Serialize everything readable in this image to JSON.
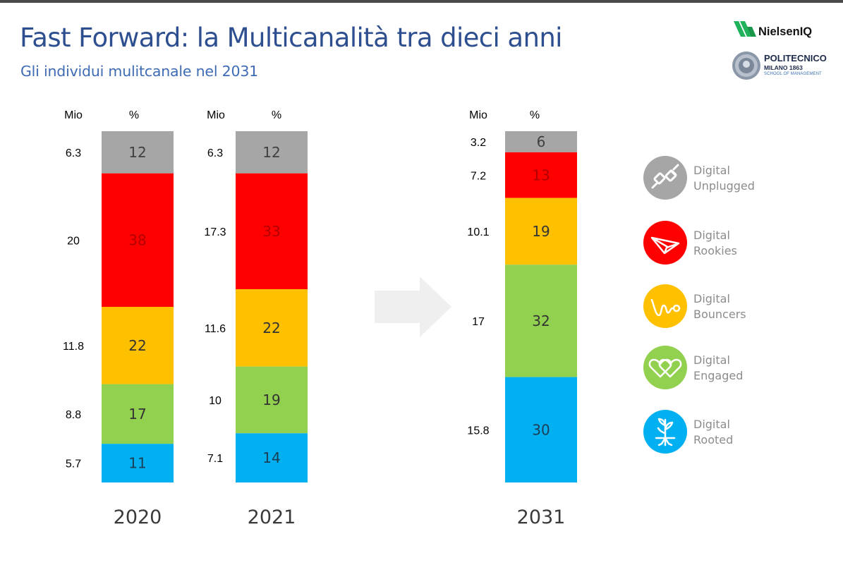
{
  "header": {
    "title": "Fast Forward: la Multicanalità tra dieci anni",
    "subtitle": "Gli individui mulitcanale nel 2031"
  },
  "logos": {
    "nielsen": "NielsenIQ",
    "politecnico_name": "POLITECNICO",
    "politecnico_city": "MILANO 1863",
    "politecnico_school": "SCHOOL OF MANAGEMENT"
  },
  "colors": {
    "unplugged": "#a6a6a6",
    "rookies": "#ff0000",
    "bouncers": "#ffc000",
    "engaged": "#92d050",
    "rooted": "#00b0f0",
    "title": "#2e4f8f",
    "arrow": "#efefef"
  },
  "legend": [
    {
      "key": "unplugged",
      "line1": "Digital",
      "line2": "Unplugged",
      "icon": "unplugged-plug-icon"
    },
    {
      "key": "rookies",
      "line1": "Digital",
      "line2": "Rookies",
      "icon": "paper-plane-icon"
    },
    {
      "key": "bouncers",
      "line1": "Digital",
      "line2": "Bouncers",
      "icon": "bounce-squiggle-icon"
    },
    {
      "key": "engaged",
      "line1": "Digital",
      "line2": "Engaged",
      "icon": "hearts-icon"
    },
    {
      "key": "rooted",
      "line1": "Digital",
      "line2": "Rooted",
      "icon": "sprout-roots-icon"
    }
  ],
  "chart_data": {
    "type": "bar",
    "stacked": true,
    "percent_stacked": true,
    "column_headers": {
      "mio": "Mio",
      "pct": "%"
    },
    "categories": [
      "2020",
      "2021",
      "2031"
    ],
    "segment_order_top_to_bottom": [
      "Digital Unplugged",
      "Digital Rookies",
      "Digital Bouncers",
      "Digital Engaged",
      "Digital Rooted"
    ],
    "series": [
      {
        "name": "Digital Unplugged",
        "color_key": "unplugged",
        "pct_labels": [
          "12",
          "12",
          "6"
        ],
        "mio_labels": [
          "6.3",
          "6.3",
          "3.2"
        ],
        "pct": [
          12,
          12,
          6
        ],
        "mio": [
          6.3,
          6.3,
          3.2
        ]
      },
      {
        "name": "Digital Rookies",
        "color_key": "rookies",
        "pct_labels": [
          "38",
          "33",
          "13"
        ],
        "mio_labels": [
          "20",
          "17.3",
          "7.2"
        ],
        "pct": [
          38,
          33,
          13
        ],
        "mio": [
          20,
          17.3,
          7.2
        ]
      },
      {
        "name": "Digital Bouncers",
        "color_key": "bouncers",
        "pct_labels": [
          "22",
          "22",
          "19"
        ],
        "mio_labels": [
          "11.8",
          "11.6",
          "10.1"
        ],
        "pct": [
          22,
          22,
          19
        ],
        "mio": [
          11.8,
          11.6,
          10.1
        ]
      },
      {
        "name": "Digital Engaged",
        "color_key": "engaged",
        "pct_labels": [
          "17",
          "19",
          "32"
        ],
        "mio_labels": [
          "8.8",
          "10",
          "17"
        ],
        "pct": [
          17,
          19,
          32
        ],
        "mio": [
          8.8,
          10,
          17
        ]
      },
      {
        "name": "Digital Rooted",
        "color_key": "rooted",
        "pct_labels": [
          "11",
          "14",
          "30"
        ],
        "mio_labels": [
          "5.7",
          "7.1",
          "15.8"
        ],
        "pct": [
          11,
          14,
          30
        ],
        "mio": [
          5.7,
          7.1,
          15.8
        ]
      }
    ],
    "annotations": [
      "arrow from 2021 to 2031"
    ]
  }
}
